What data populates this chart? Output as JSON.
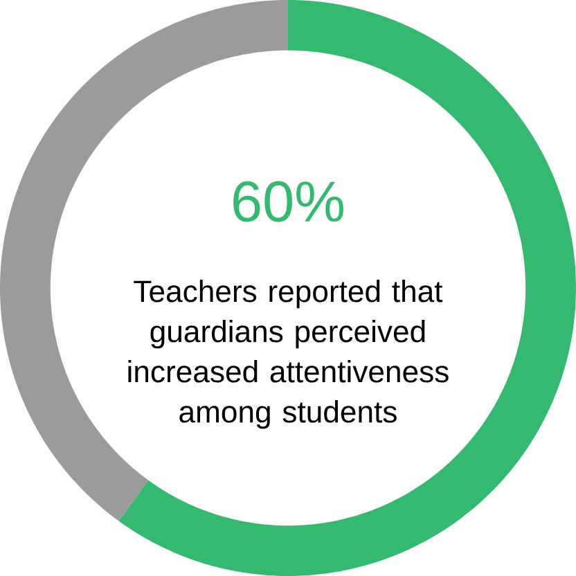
{
  "chart_data": {
    "type": "donut",
    "categories": [
      null,
      null
    ],
    "values": [
      60,
      40
    ],
    "colors": [
      "#35b86f",
      "#9b9b9b"
    ],
    "annotations": [
      "60%",
      "Teachers reported that guardians perceived increased attentiveness among students"
    ]
  }
}
